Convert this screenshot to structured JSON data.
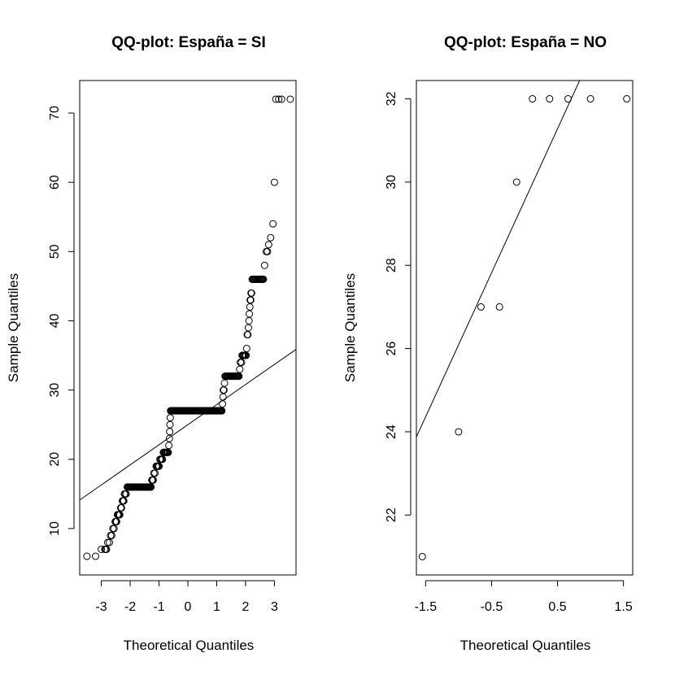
{
  "chart_data": [
    {
      "type": "scatter",
      "title": "QQ-plot: España = SI",
      "xlabel": "Theoretical Quantiles",
      "ylabel": "Sample Quantiles",
      "xlim": [
        -3.75,
        3.75
      ],
      "ylim": [
        3.3,
        74.7
      ],
      "xticks": [
        -3,
        -2,
        -1,
        0,
        1,
        2,
        3
      ],
      "yticks": [
        10,
        20,
        30,
        40,
        50,
        60,
        70
      ],
      "grid": false,
      "legend": "none",
      "reference_line": {
        "intercept": 25,
        "slope": 2.9
      },
      "runs": [
        {
          "y": 7,
          "x0": -2.88,
          "x1": -2.82,
          "n": 3
        },
        {
          "y": 8,
          "x0": -2.78,
          "x1": -2.72,
          "n": 2
        },
        {
          "y": 9,
          "x0": -2.68,
          "x1": -2.64,
          "n": 2
        },
        {
          "y": 10,
          "x0": -2.6,
          "x1": -2.56,
          "n": 2
        },
        {
          "y": 11,
          "x0": -2.52,
          "x1": -2.47,
          "n": 3
        },
        {
          "y": 12,
          "x0": -2.44,
          "x1": -2.36,
          "n": 4
        },
        {
          "y": 13,
          "x0": -2.33,
          "x1": -2.3,
          "n": 2
        },
        {
          "y": 14,
          "x0": -2.27,
          "x1": -2.22,
          "n": 3
        },
        {
          "y": 15,
          "x0": -2.2,
          "x1": -2.14,
          "n": 3
        },
        {
          "y": 16,
          "x0": -2.1,
          "x1": -1.28,
          "n": 34
        },
        {
          "y": 17,
          "x0": -1.25,
          "x1": -1.2,
          "n": 3
        },
        {
          "y": 18,
          "x0": -1.18,
          "x1": -1.14,
          "n": 2
        },
        {
          "y": 19,
          "x0": -1.1,
          "x1": -1.0,
          "n": 5
        },
        {
          "y": 20,
          "x0": -0.97,
          "x1": -0.88,
          "n": 4
        },
        {
          "y": 21,
          "x0": -0.85,
          "x1": -0.68,
          "n": 8
        },
        {
          "y": 22,
          "x0": -0.66,
          "x1": -0.66,
          "n": 1
        },
        {
          "y": 23,
          "x0": -0.64,
          "x1": -0.64,
          "n": 1
        },
        {
          "y": 24,
          "x0": -0.63,
          "x1": -0.63,
          "n": 1
        },
        {
          "y": 25,
          "x0": -0.62,
          "x1": -0.62,
          "n": 1
        },
        {
          "y": 26,
          "x0": -0.61,
          "x1": -0.61,
          "n": 1
        },
        {
          "y": 27,
          "x0": -0.6,
          "x1": 1.18,
          "n": 72
        },
        {
          "y": 28,
          "x0": 1.2,
          "x1": 1.2,
          "n": 1
        },
        {
          "y": 29,
          "x0": 1.22,
          "x1": 1.22,
          "n": 1
        },
        {
          "y": 30,
          "x0": 1.23,
          "x1": 1.25,
          "n": 2
        },
        {
          "y": 31,
          "x0": 1.27,
          "x1": 1.27,
          "n": 1
        },
        {
          "y": 32,
          "x0": 1.29,
          "x1": 1.77,
          "n": 20
        },
        {
          "y": 33,
          "x0": 1.8,
          "x1": 1.8,
          "n": 1
        },
        {
          "y": 34,
          "x0": 1.82,
          "x1": 1.86,
          "n": 2
        },
        {
          "y": 35,
          "x0": 1.88,
          "x1": 2.02,
          "n": 6
        },
        {
          "y": 36,
          "x0": 2.04,
          "x1": 2.04,
          "n": 1
        },
        {
          "y": 38,
          "x0": 2.06,
          "x1": 2.08,
          "n": 2
        },
        {
          "y": 39,
          "x0": 2.1,
          "x1": 2.1,
          "n": 1
        },
        {
          "y": 40,
          "x0": 2.12,
          "x1": 2.12,
          "n": 1
        },
        {
          "y": 41,
          "x0": 2.13,
          "x1": 2.13,
          "n": 1
        },
        {
          "y": 42,
          "x0": 2.15,
          "x1": 2.15,
          "n": 1
        },
        {
          "y": 43,
          "x0": 2.16,
          "x1": 2.18,
          "n": 2
        },
        {
          "y": 44,
          "x0": 2.19,
          "x1": 2.21,
          "n": 2
        },
        {
          "y": 46,
          "x0": 2.23,
          "x1": 2.62,
          "n": 16
        }
      ],
      "points": [
        {
          "x": -3.5,
          "y": 6
        },
        {
          "x": -3.2,
          "y": 6
        },
        {
          "x": -3.0,
          "y": 7
        },
        {
          "x": 2.66,
          "y": 48
        },
        {
          "x": 2.72,
          "y": 50
        },
        {
          "x": 2.76,
          "y": 50
        },
        {
          "x": 2.8,
          "y": 51
        },
        {
          "x": 2.87,
          "y": 52
        },
        {
          "x": 2.95,
          "y": 54
        },
        {
          "x": 3.0,
          "y": 60
        },
        {
          "x": 3.05,
          "y": 72
        },
        {
          "x": 3.15,
          "y": 72
        },
        {
          "x": 3.25,
          "y": 72
        },
        {
          "x": 3.55,
          "y": 72
        }
      ]
    },
    {
      "type": "scatter",
      "title": "QQ-plot: España = NO",
      "xlabel": "Theoretical Quantiles",
      "ylabel": "Sample Quantiles",
      "xlim": [
        -1.64,
        1.64
      ],
      "ylim": [
        20.56,
        32.44
      ],
      "xticks": [
        -1.5,
        -0.5,
        0.5,
        1.5
      ],
      "xtick_labels": [
        "-1.5",
        "-0.5",
        "0.5",
        "1.5"
      ],
      "yticks": [
        22,
        24,
        26,
        28,
        30,
        32
      ],
      "grid": false,
      "legend": "none",
      "reference_line": {
        "intercept": 29.55,
        "slope": 3.46
      },
      "points": [
        {
          "x": -1.55,
          "y": 21
        },
        {
          "x": -1.0,
          "y": 24
        },
        {
          "x": -0.66,
          "y": 27
        },
        {
          "x": -0.38,
          "y": 27
        },
        {
          "x": -0.12,
          "y": 30
        },
        {
          "x": 0.12,
          "y": 32
        },
        {
          "x": 0.38,
          "y": 32
        },
        {
          "x": 0.66,
          "y": 32
        },
        {
          "x": 1.0,
          "y": 32
        },
        {
          "x": 1.55,
          "y": 32
        }
      ]
    }
  ]
}
